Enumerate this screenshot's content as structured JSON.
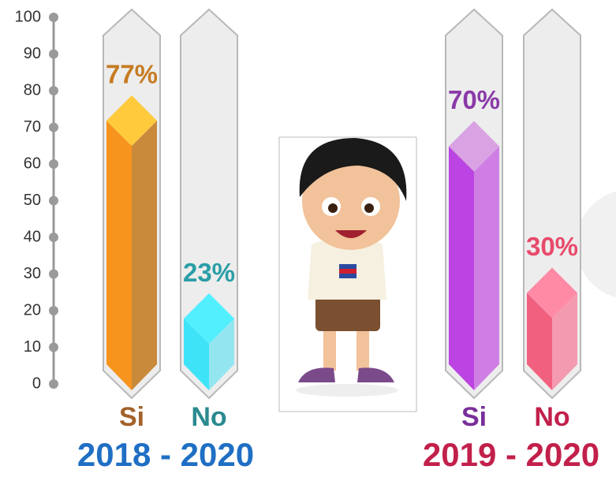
{
  "chart_data": [
    {
      "type": "bar",
      "title": "2018 - 2020",
      "title_color": "#1f6fc4",
      "categories": [
        "Si",
        "No"
      ],
      "values": [
        77,
        23
      ],
      "value_labels": [
        "77%",
        "23%"
      ],
      "colors": [
        "#f7941d",
        "#3fe3f7"
      ],
      "cap_colors": [
        "#ffcb3d",
        "#52efff"
      ],
      "side_colors": [
        "#c98a3c",
        "#93e6f0"
      ],
      "label_colors": [
        "#c77b22",
        "#2a9ea6"
      ],
      "category_colors": [
        "#a3622a",
        "#2a8a8f"
      ],
      "ylim": [
        0,
        100
      ],
      "yticks": [
        0,
        10,
        20,
        30,
        40,
        50,
        60,
        70,
        80,
        90,
        100
      ]
    },
    {
      "type": "bar",
      "title": "2019 - 2020",
      "title_color": "#c2204b",
      "categories": [
        "Si",
        "No"
      ],
      "values": [
        70,
        30
      ],
      "value_labels": [
        "70%",
        "30%"
      ],
      "colors": [
        "#bb44e2",
        "#f2607f"
      ],
      "cap_colors": [
        "#d9a2e2",
        "#ff8aa6"
      ],
      "side_colors": [
        "#cf7fe3",
        "#f49ab0"
      ],
      "label_colors": [
        "#8a3aa8",
        "#e84a6a"
      ],
      "category_colors": [
        "#7a2f9a",
        "#c2204b"
      ],
      "ylim": [
        0,
        100
      ]
    }
  ]
}
